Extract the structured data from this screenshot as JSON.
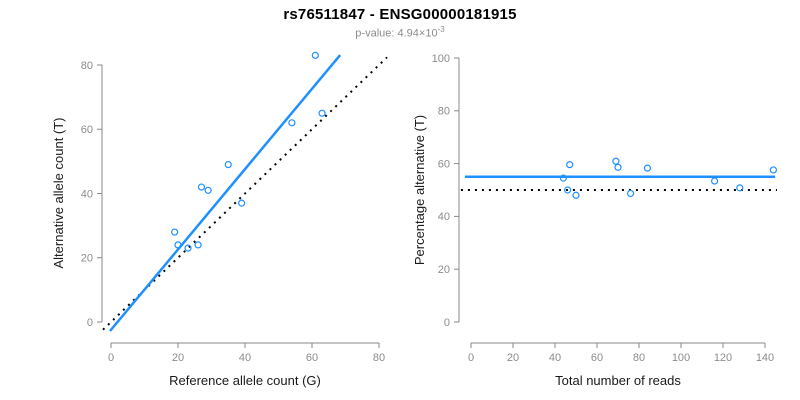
{
  "header": {
    "title": "rs76511847 - ENSG00000181915",
    "subtitle_prefix": "p-value: 4.94×10",
    "subtitle_exponent": "-3"
  },
  "colors": {
    "accent_blue": "#1E90FF",
    "identity_line_black": "#000000",
    "axis_line_gray": "#888888",
    "tick_label_gray": "#8c8c8c",
    "axis_title_color": "#1a1a1a",
    "background": "#ffffff"
  },
  "chart_data": [
    {
      "type": "scatter",
      "name": "allele-counts-scatter",
      "xlabel": "Reference allele count (G)",
      "ylabel": "Alternative allele count (T)",
      "xlim": [
        0,
        80
      ],
      "ylim": [
        0,
        80
      ],
      "xticks": [
        0,
        20,
        40,
        60,
        80
      ],
      "yticks": [
        0,
        20,
        40,
        60,
        80
      ],
      "grid": false,
      "legend": "none",
      "marker": "open-circle",
      "marker_color": "#1E90FF",
      "points": [
        [
          19,
          28
        ],
        [
          20,
          24
        ],
        [
          23,
          23
        ],
        [
          26,
          24
        ],
        [
          27,
          42
        ],
        [
          29,
          41
        ],
        [
          35,
          49
        ],
        [
          39,
          37
        ],
        [
          54,
          62
        ],
        [
          61,
          83
        ],
        [
          63,
          65
        ]
      ],
      "lines": [
        {
          "name": "identity-line",
          "style": "dotted",
          "color": "#000000",
          "width": 2,
          "x": [
            -2.4,
            82.4
          ],
          "y": [
            -2.4,
            82.4
          ]
        },
        {
          "name": "fit-line",
          "style": "solid",
          "color": "#1E90FF",
          "width": 2.5,
          "x": [
            -0.3,
            68.4
          ],
          "y": [
            -2.8,
            83.1
          ]
        }
      ]
    },
    {
      "type": "scatter",
      "name": "percentage-alternative-scatter",
      "xlabel": "Total number of reads",
      "ylabel": "Percentage alternative (T)",
      "xlim": [
        0,
        140
      ],
      "ylim": [
        0,
        100
      ],
      "xticks": [
        0,
        20,
        40,
        60,
        80,
        100,
        120,
        140
      ],
      "yticks": [
        0,
        20,
        40,
        60,
        80,
        100
      ],
      "grid": false,
      "legend": "none",
      "marker": "open-circle",
      "marker_color": "#1E90FF",
      "points": [
        [
          44,
          54.5
        ],
        [
          46,
          50.0
        ],
        [
          47,
          59.6
        ],
        [
          50,
          48.0
        ],
        [
          69,
          60.9
        ],
        [
          70,
          58.6
        ],
        [
          76,
          48.7
        ],
        [
          84,
          58.3
        ],
        [
          116,
          53.4
        ],
        [
          128,
          50.8
        ],
        [
          144,
          57.6
        ]
      ],
      "lines": [
        {
          "name": "reference-50pct-line",
          "style": "dotted",
          "color": "#000000",
          "width": 2,
          "x": [
            -4.8,
            145.7
          ],
          "y": [
            50,
            50
          ]
        },
        {
          "name": "mean-pct-line",
          "style": "solid",
          "color": "#1E90FF",
          "width": 2.5,
          "x": [
            -2.9,
            144.8
          ],
          "y": [
            55,
            55
          ]
        }
      ]
    }
  ]
}
